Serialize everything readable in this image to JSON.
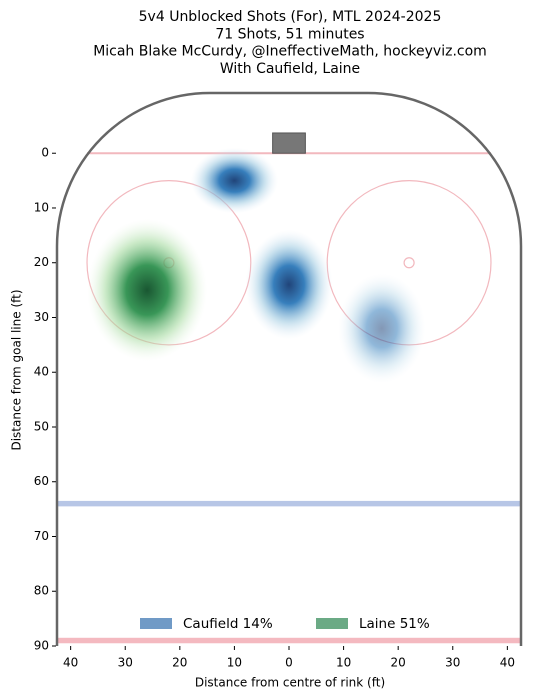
{
  "chart_data": {
    "type": "density",
    "title": [
      "5v4 Unblocked Shots (For), MTL 2024-2025",
      "71 Shots, 51 minutes",
      "Micah Blake McCurdy, @IneffectiveMath, hockeyviz.com",
      "With Caufield, Laine"
    ],
    "xlabel": "Distance from centre of rink (ft)",
    "ylabel": "Distance from goal line (ft)",
    "xlim": [
      -42.5,
      42.5
    ],
    "ylim": [
      -11,
      90
    ],
    "xticks": [
      {
        "value": -40,
        "label": "40"
      },
      {
        "value": -30,
        "label": "30"
      },
      {
        "value": -20,
        "label": "20"
      },
      {
        "value": -10,
        "label": "10"
      },
      0,
      10,
      20,
      30,
      40
    ],
    "yticks": [
      0,
      10,
      20,
      30,
      40,
      50,
      60,
      70,
      80,
      90
    ],
    "legend": "lower center",
    "series": [
      {
        "name": "Caufield 14%",
        "color": "#08519c",
        "x": [
          -10,
          0,
          17
        ],
        "y": [
          5,
          24,
          32
        ]
      },
      {
        "name": "Laine 51%",
        "color": "#006d2c",
        "x": [
          -26
        ],
        "y": [
          25
        ]
      }
    ]
  }
}
